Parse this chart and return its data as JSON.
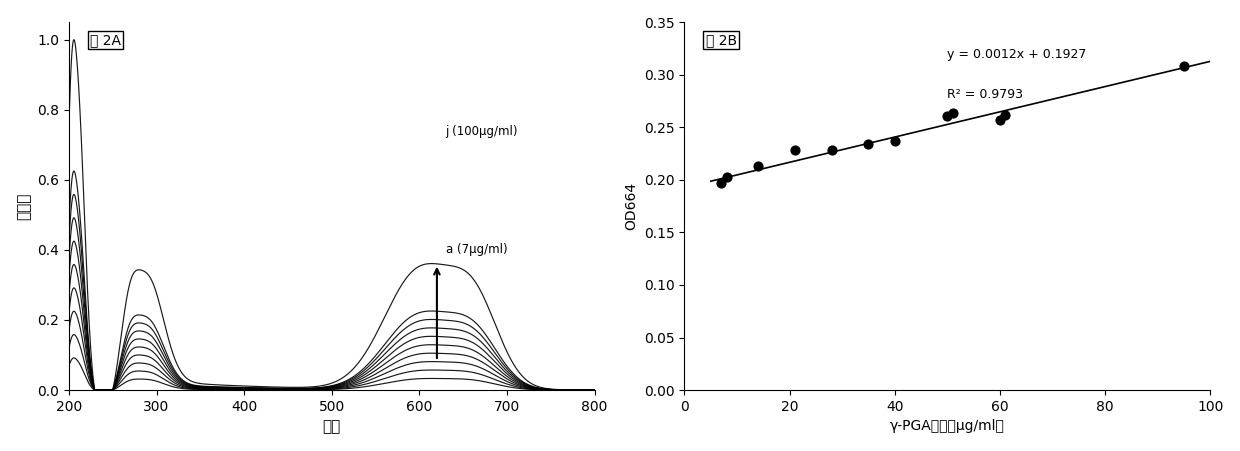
{
  "fig2A_label": "图 2A",
  "fig2B_label": "图 2B",
  "xlabel_2A": "波长",
  "ylabel_2A": "吸光度",
  "xlabel_2B": "γ-PGA浓度（μg/ml）",
  "ylabel_2B": "OD664",
  "xlim_2A": [
    200,
    800
  ],
  "ylim_2A": [
    0,
    1.05
  ],
  "xticks_2A": [
    200,
    300,
    400,
    500,
    600,
    700,
    800
  ],
  "yticks_2A": [
    0,
    0.2,
    0.4,
    0.6,
    0.8,
    1.0
  ],
  "xlim_2B": [
    0,
    100
  ],
  "ylim_2B": [
    0,
    0.35
  ],
  "xticks_2B": [
    0,
    20,
    40,
    60,
    80,
    100
  ],
  "yticks_2B": [
    0,
    0.05,
    0.1,
    0.15,
    0.2,
    0.25,
    0.3,
    0.35
  ],
  "concentrations": [
    7,
    14,
    21,
    28,
    35,
    42,
    49,
    56,
    63,
    100
  ],
  "annotation_j": "j (100μg/ml)",
  "annotation_a": "a (7μg/ml)",
  "eq_text": "y = 0.0012x + 0.1927",
  "r2_text": "R² = 0.9793",
  "scatter_x": [
    7,
    8,
    14,
    21,
    28,
    35,
    40,
    50,
    51,
    60,
    61,
    95
  ],
  "scatter_y": [
    0.197,
    0.203,
    0.213,
    0.228,
    0.228,
    0.234,
    0.237,
    0.261,
    0.264,
    0.257,
    0.262,
    0.308
  ],
  "background_color": "#ffffff",
  "curve_color": "#000000",
  "scale_factors": [
    0.055,
    0.095,
    0.135,
    0.175,
    0.215,
    0.255,
    0.295,
    0.335,
    0.375,
    0.6
  ]
}
